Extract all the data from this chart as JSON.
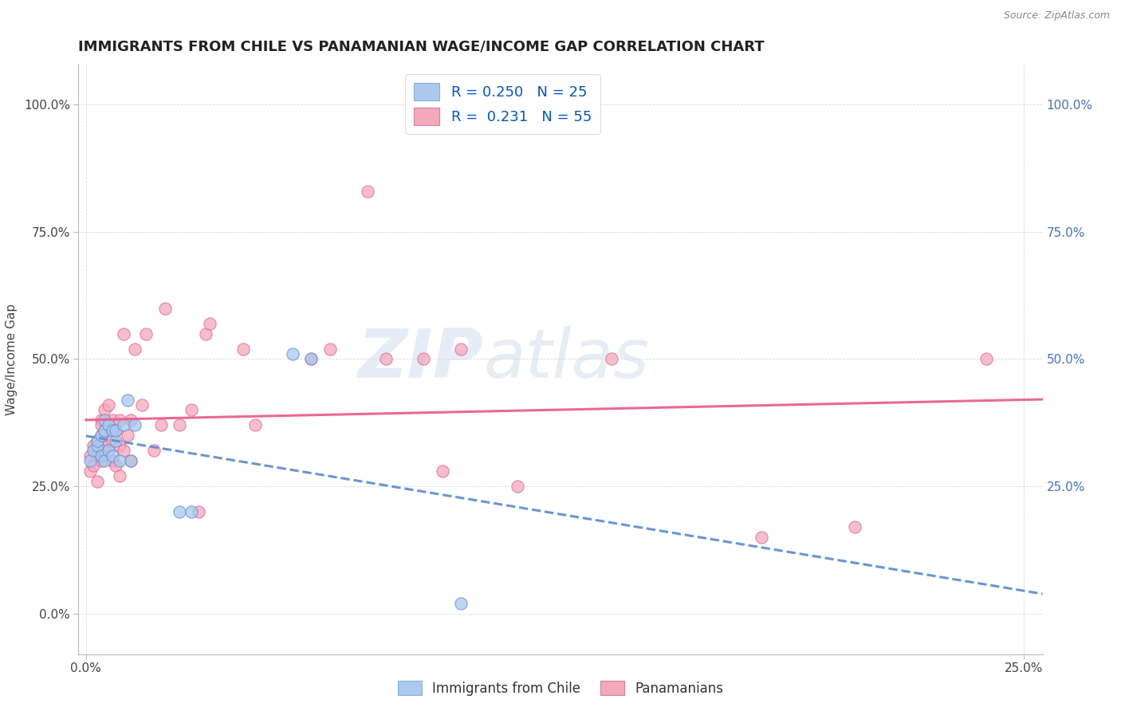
{
  "title": "IMMIGRANTS FROM CHILE VS PANAMANIAN WAGE/INCOME GAP CORRELATION CHART",
  "source": "Source: ZipAtlas.com",
  "ylabel": "Wage/Income Gap",
  "xlim": [
    -0.002,
    0.255
  ],
  "ylim": [
    -0.08,
    1.08
  ],
  "ytick_labels": [
    "0.0%",
    "25.0%",
    "50.0%",
    "75.0%",
    "100.0%"
  ],
  "ytick_values": [
    0.0,
    0.25,
    0.5,
    0.75,
    1.0
  ],
  "xtick_labels": [
    "0.0%",
    "25.0%"
  ],
  "xtick_values": [
    0.0,
    0.25
  ],
  "right_ytick_labels": [
    "25.0%",
    "50.0%",
    "75.0%",
    "100.0%"
  ],
  "right_ytick_values": [
    0.25,
    0.5,
    0.75,
    1.0
  ],
  "legend_label_1": "R = 0.250   N = 25",
  "legend_label_2": "R =  0.231   N = 55",
  "legend_color_1": "#aac8f0",
  "legend_color_2": "#f4a8bc",
  "scatter_chile_color": "#a8c8f0",
  "scatter_panama_color": "#f4a8bc",
  "line_chile_color": "#6090d0",
  "line_panama_color": "#e86090",
  "background_color": "#ffffff",
  "grid_color": "#cccccc",
  "watermark_zip": "ZIP",
  "watermark_atlas": "atlas",
  "title_fontsize": 13,
  "axis_label_fontsize": 11,
  "tick_fontsize": 11,
  "right_tick_color": "#4472c4",
  "scatter_chile_x": [
    0.001,
    0.002,
    0.003,
    0.003,
    0.004,
    0.004,
    0.005,
    0.005,
    0.005,
    0.006,
    0.006,
    0.007,
    0.007,
    0.008,
    0.008,
    0.009,
    0.01,
    0.011,
    0.012,
    0.013,
    0.025,
    0.028,
    0.055,
    0.06,
    0.1
  ],
  "scatter_chile_y": [
    0.3,
    0.32,
    0.33,
    0.34,
    0.31,
    0.35,
    0.3,
    0.36,
    0.38,
    0.32,
    0.37,
    0.31,
    0.36,
    0.34,
    0.36,
    0.3,
    0.37,
    0.42,
    0.3,
    0.37,
    0.2,
    0.2,
    0.51,
    0.5,
    0.02
  ],
  "scatter_panama_x": [
    0.001,
    0.001,
    0.002,
    0.002,
    0.003,
    0.003,
    0.003,
    0.004,
    0.004,
    0.004,
    0.004,
    0.005,
    0.005,
    0.005,
    0.006,
    0.006,
    0.006,
    0.007,
    0.007,
    0.007,
    0.008,
    0.008,
    0.009,
    0.009,
    0.009,
    0.01,
    0.01,
    0.011,
    0.012,
    0.012,
    0.013,
    0.015,
    0.016,
    0.018,
    0.02,
    0.021,
    0.025,
    0.028,
    0.03,
    0.032,
    0.033,
    0.042,
    0.045,
    0.06,
    0.065,
    0.075,
    0.08,
    0.09,
    0.095,
    0.1,
    0.115,
    0.14,
    0.18,
    0.205,
    0.24
  ],
  "scatter_panama_y": [
    0.28,
    0.31,
    0.29,
    0.33,
    0.26,
    0.31,
    0.34,
    0.3,
    0.35,
    0.38,
    0.37,
    0.32,
    0.36,
    0.4,
    0.33,
    0.37,
    0.41,
    0.3,
    0.34,
    0.38,
    0.29,
    0.36,
    0.27,
    0.33,
    0.38,
    0.32,
    0.55,
    0.35,
    0.3,
    0.38,
    0.52,
    0.41,
    0.55,
    0.32,
    0.37,
    0.6,
    0.37,
    0.4,
    0.2,
    0.55,
    0.57,
    0.52,
    0.37,
    0.5,
    0.52,
    0.83,
    0.5,
    0.5,
    0.28,
    0.52,
    0.25,
    0.5,
    0.15,
    0.17,
    0.5
  ]
}
